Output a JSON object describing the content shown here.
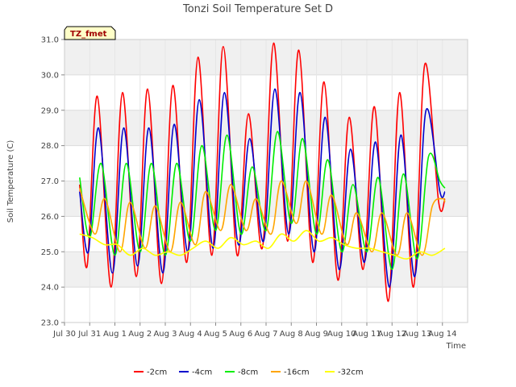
{
  "chart_data": {
    "type": "line",
    "title": "Tonzi Soil Temperature Set D",
    "xlabel": "Time",
    "ylabel": "Soil Temperature (C)",
    "annotation": "TZ_fmet",
    "xlim": [
      0,
      16
    ],
    "ylim": [
      23.0,
      31.0
    ],
    "yticks": [
      23.0,
      24.0,
      25.0,
      26.0,
      27.0,
      28.0,
      29.0,
      30.0,
      31.0
    ],
    "ytick_labels": [
      "23.0",
      "24.0",
      "25.0",
      "26.0",
      "27.0",
      "28.0",
      "29.0",
      "30.0",
      "31.0"
    ],
    "xticks": [
      0,
      1,
      2,
      3,
      4,
      5,
      6,
      7,
      8,
      9,
      10,
      11,
      12,
      13,
      14,
      15
    ],
    "xtick_labels": [
      "Jul 30",
      "Jul 31",
      "Aug 1",
      "Aug 2",
      "Aug 3",
      "Aug 4",
      "Aug 5",
      "Aug 6",
      "Aug 7",
      "Aug 8",
      "Aug 9",
      "Aug 10",
      "Aug 11",
      "Aug 12",
      "Aug 13",
      "Aug 14"
    ],
    "grid": true,
    "legend_position": "bottom",
    "series": [
      {
        "name": "-2cm",
        "color": "#ff0000",
        "x": [
          0.6,
          0.9,
          1.3,
          1.85,
          2.3,
          2.85,
          3.3,
          3.85,
          4.3,
          4.85,
          5.3,
          5.85,
          6.3,
          6.85,
          7.3,
          7.85,
          8.3,
          8.85,
          9.3,
          9.85,
          10.3,
          10.85,
          11.3,
          11.85,
          12.3,
          12.85,
          13.3,
          13.85,
          14.3,
          14.85,
          15.1
        ],
        "y": [
          26.9,
          24.6,
          29.4,
          24.0,
          29.5,
          24.3,
          29.6,
          24.1,
          29.7,
          24.7,
          30.5,
          24.9,
          30.8,
          24.9,
          28.9,
          25.1,
          30.9,
          25.3,
          30.7,
          24.7,
          29.8,
          24.2,
          28.8,
          24.5,
          29.1,
          23.6,
          29.5,
          24.0,
          30.3,
          26.4,
          26.5
        ]
      },
      {
        "name": "-4cm",
        "color": "#0000cc",
        "x": [
          0.6,
          0.95,
          1.35,
          1.9,
          2.35,
          2.9,
          3.35,
          3.9,
          4.35,
          4.9,
          5.35,
          5.9,
          6.35,
          6.9,
          7.35,
          7.9,
          8.35,
          8.9,
          9.35,
          9.9,
          10.35,
          10.9,
          11.35,
          11.9,
          12.35,
          12.9,
          13.35,
          13.9,
          14.35,
          14.9,
          15.1
        ],
        "y": [
          26.7,
          25.0,
          28.5,
          24.4,
          28.5,
          24.6,
          28.5,
          24.4,
          28.6,
          25.0,
          29.3,
          25.1,
          29.5,
          25.2,
          28.2,
          25.3,
          29.6,
          25.5,
          29.5,
          25.0,
          28.8,
          24.5,
          27.9,
          24.7,
          28.1,
          24.0,
          28.3,
          24.3,
          29.0,
          26.7,
          26.7
        ]
      },
      {
        "name": "-8cm",
        "color": "#00ee00",
        "x": [
          0.6,
          1.0,
          1.45,
          2.0,
          2.45,
          3.0,
          3.45,
          4.0,
          4.45,
          5.0,
          5.45,
          6.0,
          6.45,
          7.0,
          7.45,
          8.0,
          8.45,
          9.0,
          9.45,
          10.0,
          10.45,
          11.0,
          11.45,
          12.0,
          12.45,
          13.0,
          13.45,
          14.0,
          14.45,
          14.9,
          15.1
        ],
        "y": [
          27.1,
          25.4,
          27.5,
          24.9,
          27.5,
          25.0,
          27.5,
          24.9,
          27.5,
          25.3,
          28.0,
          25.6,
          28.3,
          25.5,
          27.4,
          25.6,
          28.4,
          25.8,
          28.2,
          25.5,
          27.6,
          25.0,
          26.9,
          25.0,
          27.1,
          24.5,
          27.2,
          24.8,
          27.7,
          27.0,
          26.8
        ]
      },
      {
        "name": "-16cm",
        "color": "#ffa500",
        "x": [
          0.6,
          1.2,
          1.6,
          2.2,
          2.6,
          3.2,
          3.6,
          4.2,
          4.6,
          5.2,
          5.6,
          6.2,
          6.6,
          7.2,
          7.6,
          8.2,
          8.6,
          9.2,
          9.6,
          10.2,
          10.6,
          11.2,
          11.6,
          12.2,
          12.6,
          13.2,
          13.6,
          14.2,
          14.6,
          15.0,
          15.1
        ],
        "y": [
          26.8,
          25.5,
          26.5,
          25.0,
          26.4,
          25.1,
          26.3,
          25.0,
          26.4,
          25.2,
          26.7,
          25.6,
          26.9,
          25.6,
          26.5,
          25.5,
          27.0,
          25.8,
          27.0,
          25.5,
          26.6,
          25.2,
          26.1,
          25.0,
          26.1,
          24.9,
          26.1,
          24.9,
          26.3,
          26.5,
          26.4
        ]
      },
      {
        "name": "-32cm",
        "color": "#ffff00",
        "x": [
          0.6,
          1.1,
          1.6,
          2.1,
          2.6,
          3.1,
          3.6,
          4.1,
          4.6,
          5.1,
          5.6,
          6.1,
          6.6,
          7.1,
          7.6,
          8.1,
          8.6,
          9.1,
          9.6,
          10.1,
          10.6,
          11.1,
          11.6,
          12.1,
          12.6,
          13.1,
          13.6,
          14.1,
          14.6,
          15.1
        ],
        "y": [
          25.5,
          25.4,
          25.2,
          25.2,
          24.9,
          25.1,
          24.9,
          25.0,
          24.9,
          25.1,
          25.3,
          25.1,
          25.4,
          25.2,
          25.3,
          25.1,
          25.5,
          25.3,
          25.6,
          25.3,
          25.4,
          25.2,
          25.1,
          25.1,
          25.0,
          24.9,
          24.8,
          25.0,
          24.9,
          25.1
        ]
      }
    ]
  }
}
